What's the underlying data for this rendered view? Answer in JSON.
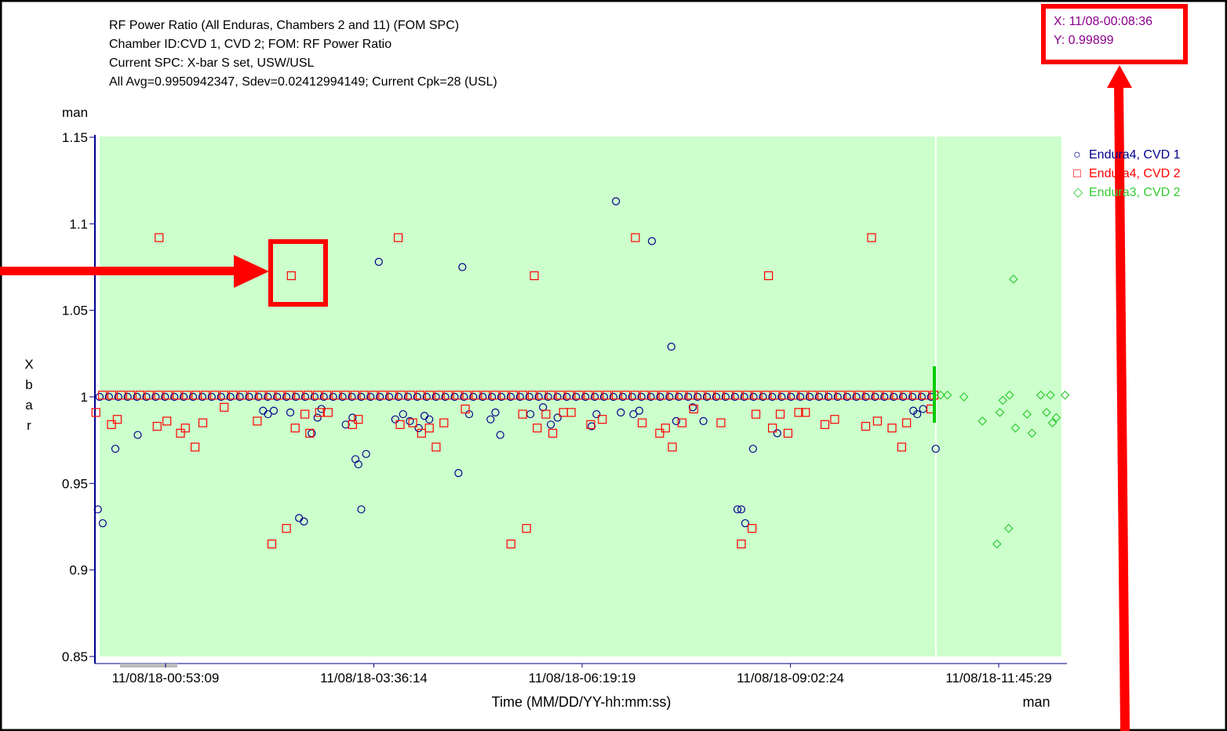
{
  "header": {
    "line1": "RF Power Ratio (All Enduras, Chambers 2 and 11) (FOM SPC)",
    "line2": "Chamber ID:CVD 1, CVD 2; FOM: RF Power Ratio",
    "line3": "Current SPC: X-bar S set, USW/USL",
    "line4": "All Avg=0.9950942347, Sdev=0.02412994149;   Current Cpk=28 (USL)"
  },
  "readout": {
    "x": "X: 11/08-00:08:36",
    "y": "Y: 0.99899"
  },
  "colors": {
    "plot_bg": "#ccffcc",
    "axis": "#00008b",
    "series1": "#00008b",
    "series2": "#ff0000",
    "series3": "#33cc33",
    "annotation": "#ff0000",
    "readout_text": "#8b008b",
    "divider": "#00cc00"
  },
  "chart_data": {
    "type": "scatter",
    "xlabel": "Time (MM/DD/YY-hh:mm:ss)",
    "ylabel": "X\nb\na\nr",
    "y_unit_label": "man",
    "x_unit_label": "man",
    "ylim": [
      0.85,
      1.15
    ],
    "yticks": [
      "0.85",
      "0.9",
      "0.95",
      "1",
      "1.05",
      "1.1",
      "1.15"
    ],
    "xticks": [
      "11/08/18-00:53:09",
      "11/08/18-03:36:14",
      "11/08/18-06:19:19",
      "11/08/18-09:02:24",
      "11/08/18-11:45:29"
    ],
    "x_note": "x values are ordinal sample positions (left-to-right)",
    "xlim": [
      0,
      100
    ],
    "series": [
      {
        "name": "Endura4, CVD 1",
        "marker": "circle",
        "points": [
          [
            0.3,
            0.935
          ],
          [
            0.8,
            0.927
          ],
          [
            2.1,
            0.97
          ],
          [
            4.4,
            0.978
          ],
          [
            17.3,
            0.992
          ],
          [
            17.8,
            0.99
          ],
          [
            18.4,
            0.992
          ],
          [
            20.1,
            0.991
          ],
          [
            21.0,
            0.93
          ],
          [
            21.5,
            0.928
          ],
          [
            22.3,
            0.979
          ],
          [
            22.9,
            0.988
          ],
          [
            23.3,
            0.993
          ],
          [
            25.8,
            0.984
          ],
          [
            26.5,
            0.988
          ],
          [
            26.8,
            0.964
          ],
          [
            27.1,
            0.961
          ],
          [
            27.4,
            0.935
          ],
          [
            27.9,
            0.967
          ],
          [
            29.2,
            1.078
          ],
          [
            30.9,
            0.987
          ],
          [
            31.7,
            0.99
          ],
          [
            32.4,
            0.986
          ],
          [
            33.3,
            0.982
          ],
          [
            33.9,
            0.989
          ],
          [
            34.4,
            0.987
          ],
          [
            37.4,
            0.956
          ],
          [
            37.8,
            1.075
          ],
          [
            38.5,
            0.99
          ],
          [
            40.7,
            0.987
          ],
          [
            41.2,
            0.991
          ],
          [
            41.7,
            0.978
          ],
          [
            44.8,
            0.99
          ],
          [
            46.1,
            0.994
          ],
          [
            46.9,
            0.984
          ],
          [
            47.6,
            0.988
          ],
          [
            51.1,
            0.983
          ],
          [
            51.6,
            0.99
          ],
          [
            53.6,
            1.113
          ],
          [
            54.1,
            0.991
          ],
          [
            55.4,
            0.99
          ],
          [
            56.0,
            0.992
          ],
          [
            57.3,
            1.09
          ],
          [
            59.3,
            1.029
          ],
          [
            59.8,
            0.986
          ],
          [
            61.5,
            0.994
          ],
          [
            62.6,
            0.986
          ],
          [
            66.1,
            0.935
          ],
          [
            66.5,
            0.935
          ],
          [
            66.9,
            0.927
          ],
          [
            67.7,
            0.97
          ],
          [
            70.2,
            0.979
          ],
          [
            84.2,
            0.992
          ],
          [
            84.6,
            0.99
          ],
          [
            85.2,
            0.993
          ],
          [
            86.5,
            0.97
          ]
        ]
      },
      {
        "name": "Endura4, CVD 2",
        "marker": "square",
        "points": [
          [
            0.1,
            0.991
          ],
          [
            1.7,
            0.984
          ],
          [
            2.3,
            0.987
          ],
          [
            6.6,
            1.092
          ],
          [
            6.4,
            0.983
          ],
          [
            7.4,
            0.986
          ],
          [
            8.8,
            0.979
          ],
          [
            9.3,
            0.982
          ],
          [
            10.3,
            0.971
          ],
          [
            11.1,
            0.985
          ],
          [
            13.3,
            0.994
          ],
          [
            16.7,
            0.986
          ],
          [
            18.2,
            0.915
          ],
          [
            19.7,
            0.924
          ],
          [
            20.2,
            1.07
          ],
          [
            20.6,
            0.982
          ],
          [
            21.6,
            0.99
          ],
          [
            22.1,
            0.979
          ],
          [
            23.1,
            0.991
          ],
          [
            24.0,
            0.991
          ],
          [
            26.5,
            0.984
          ],
          [
            27.1,
            0.987
          ],
          [
            31.2,
            1.092
          ],
          [
            31.4,
            0.984
          ],
          [
            32.7,
            0.985
          ],
          [
            33.6,
            0.979
          ],
          [
            34.4,
            0.982
          ],
          [
            35.1,
            0.971
          ],
          [
            35.9,
            0.985
          ],
          [
            38.1,
            0.993
          ],
          [
            42.8,
            0.915
          ],
          [
            44.4,
            0.924
          ],
          [
            44.0,
            0.99
          ],
          [
            45.2,
            1.07
          ],
          [
            45.5,
            0.982
          ],
          [
            46.4,
            0.99
          ],
          [
            47.1,
            0.979
          ],
          [
            48.2,
            0.991
          ],
          [
            49.0,
            0.991
          ],
          [
            51.0,
            0.984
          ],
          [
            52.2,
            0.987
          ],
          [
            55.6,
            1.092
          ],
          [
            56.3,
            0.985
          ],
          [
            58.1,
            0.979
          ],
          [
            58.7,
            0.982
          ],
          [
            59.4,
            0.971
          ],
          [
            60.4,
            0.985
          ],
          [
            61.6,
            0.993
          ],
          [
            64.4,
            0.985
          ],
          [
            66.5,
            0.915
          ],
          [
            67.6,
            0.924
          ],
          [
            68.0,
            0.99
          ],
          [
            69.3,
            1.07
          ],
          [
            69.7,
            0.982
          ],
          [
            70.5,
            0.99
          ],
          [
            71.3,
            0.979
          ],
          [
            72.4,
            0.991
          ],
          [
            73.1,
            0.991
          ],
          [
            75.1,
            0.984
          ],
          [
            76.1,
            0.987
          ],
          [
            79.9,
            1.092
          ],
          [
            79.3,
            0.983
          ],
          [
            80.5,
            0.986
          ],
          [
            82.0,
            0.982
          ],
          [
            83.0,
            0.971
          ],
          [
            83.5,
            0.985
          ],
          [
            86.0,
            0.993
          ]
        ]
      },
      {
        "name": "Endura3, CVD 2",
        "marker": "diamond",
        "points": [
          [
            87.0,
            1.001
          ],
          [
            87.7,
            1.001
          ],
          [
            89.4,
            1.0
          ],
          [
            91.3,
            0.986
          ],
          [
            92.8,
            0.915
          ],
          [
            93.1,
            0.991
          ],
          [
            93.4,
            0.998
          ],
          [
            94.0,
            0.924
          ],
          [
            94.1,
            1.001
          ],
          [
            94.5,
            1.068
          ],
          [
            94.7,
            0.982
          ],
          [
            95.9,
            0.99
          ],
          [
            96.4,
            0.979
          ],
          [
            97.3,
            1.001
          ],
          [
            97.9,
            0.991
          ],
          [
            98.3,
            1.001
          ],
          [
            98.5,
            0.985
          ],
          [
            98.9,
            0.988
          ],
          [
            99.8,
            1.001
          ]
        ]
      }
    ],
    "center_band": {
      "count_per_series": 90,
      "y_series1": 1.0,
      "y_series2": 1.001
    }
  }
}
